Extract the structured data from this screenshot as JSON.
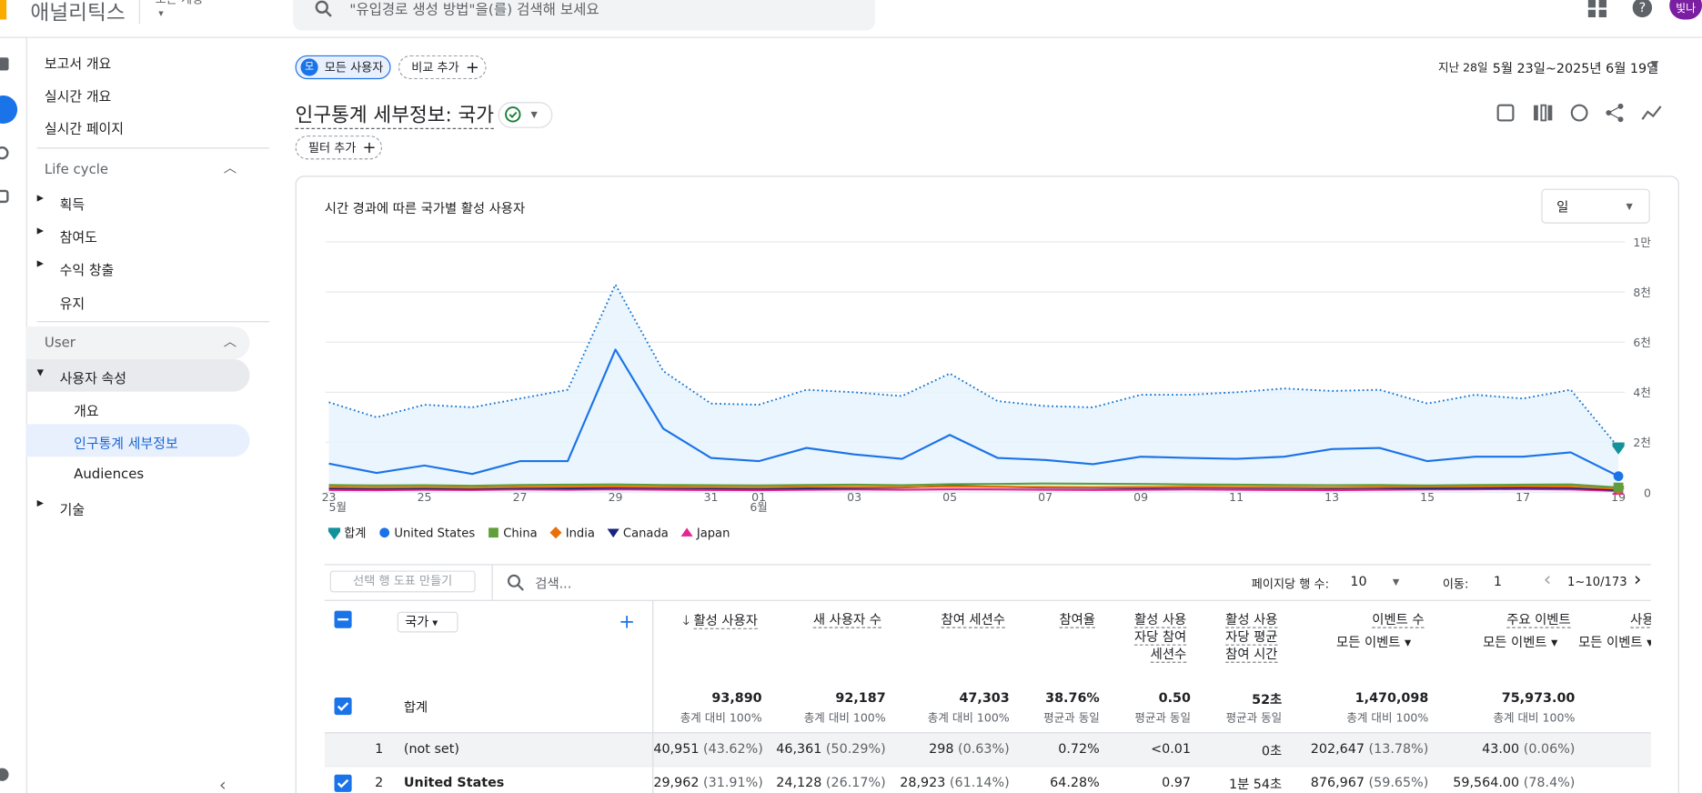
{
  "header": {
    "product": "애널리틱스",
    "account": "모든 계정",
    "search": "\"유입경로 생성 방법\"을(를) 검색해 보세요",
    "avatar": "빛나"
  },
  "sidebar": {
    "top": [
      "보고서 개요",
      "실시간 개요",
      "실시간 페이지"
    ],
    "lifecycle": {
      "title": "Life cycle",
      "items": [
        "획득",
        "참여도",
        "수익 창출",
        "유지"
      ]
    },
    "user": {
      "title": "User",
      "group": "사용자 속성",
      "children": [
        "개요",
        "인구통계 세부정보",
        "Audiences"
      ],
      "after": "기술"
    }
  },
  "toolbar": {
    "segment_badge": "모",
    "segment": "모든 사용자",
    "compare": "비교 추가",
    "date_label": "지난 28일",
    "date_range": "5월 23일~2025년 6월 19일"
  },
  "report": {
    "title": "인구통계 세부정보: 국가",
    "filter": "필터 추가"
  },
  "chart": {
    "type": "line",
    "title": "시간 경과에 따른 국가별 활성 사용자",
    "interval": "일",
    "categories": [
      "23",
      null,
      "25",
      null,
      "27",
      null,
      "29",
      null,
      "31",
      "01",
      null,
      "03",
      null,
      "05",
      null,
      "07",
      null,
      "09",
      null,
      "11",
      null,
      "13",
      null,
      "15",
      null,
      "17",
      null,
      "19"
    ],
    "month_labels": [
      "5월",
      null,
      null,
      null,
      null,
      null,
      null,
      null,
      null,
      "6월",
      null,
      null,
      null,
      null,
      null,
      null,
      null,
      null,
      null,
      null,
      null,
      null,
      null,
      null,
      null,
      null,
      null,
      null
    ],
    "ylim": [
      0,
      10000
    ],
    "yticks": [
      0,
      {
        "value": 2000,
        "label": "2천"
      },
      {
        "value": 4000,
        "label": "4천"
      },
      {
        "value": 6000,
        "label": "6천"
      },
      {
        "value": 8000,
        "label": "8천"
      },
      {
        "value": 10000,
        "label": "1만"
      }
    ],
    "grid": true,
    "series": [
      {
        "name": "합계",
        "color": "#1976d2",
        "marker": "pin",
        "marker_color": "#12939a",
        "dotted": true,
        "area": true,
        "values": [
          3600,
          3000,
          3500,
          3400,
          3750,
          4100,
          8300,
          4850,
          3550,
          3500,
          4100,
          4000,
          3850,
          4750,
          3650,
          3450,
          3400,
          3900,
          3900,
          4000,
          4150,
          4050,
          4100,
          3550,
          3900,
          3750,
          4100,
          1800
        ]
      },
      {
        "name": "United States",
        "color": "#1a73e8",
        "marker": "circle",
        "values": [
          1150,
          780,
          1080,
          740,
          1250,
          1250,
          5700,
          2550,
          1380,
          1250,
          1780,
          1520,
          1340,
          2300,
          1380,
          1300,
          1130,
          1430,
          1380,
          1340,
          1430,
          1730,
          1780,
          1250,
          1430,
          1430,
          1600,
          650
        ]
      },
      {
        "name": "China",
        "color": "#5f9e3b",
        "marker": "square",
        "values": [
          300,
          280,
          290,
          270,
          300,
          310,
          320,
          300,
          290,
          280,
          300,
          310,
          290,
          330,
          340,
          360,
          350,
          340,
          320,
          310,
          300,
          290,
          300,
          280,
          300,
          310,
          320,
          200
        ]
      },
      {
        "name": "India",
        "color": "#e8710a",
        "marker": "diamond",
        "values": [
          220,
          200,
          210,
          190,
          220,
          230,
          240,
          220,
          210,
          200,
          230,
          220,
          210,
          240,
          230,
          220,
          210,
          220,
          230,
          220,
          210,
          200,
          220,
          230,
          240,
          250,
          240,
          150
        ]
      },
      {
        "name": "Canada",
        "color": "#1a237e",
        "marker": "triangle-down",
        "values": [
          170,
          160,
          170,
          150,
          180,
          170,
          190,
          180,
          170,
          160,
          170,
          180,
          200,
          260,
          230,
          200,
          190,
          180,
          200,
          190,
          180,
          170,
          180,
          170,
          180,
          190,
          180,
          100
        ]
      },
      {
        "name": "Japan",
        "color": "#e52592",
        "marker": "triangle-up",
        "values": [
          100,
          90,
          110,
          100,
          120,
          110,
          130,
          110,
          100,
          90,
          110,
          120,
          110,
          130,
          120,
          110,
          100,
          110,
          120,
          110,
          100,
          90,
          110,
          120,
          130,
          140,
          120,
          60
        ]
      }
    ]
  },
  "table": {
    "chart_button": "선택 행 도표 만들기",
    "search": "검색...",
    "rows_per_page_label": "페이지당 행 수:",
    "rows_per_page": "10",
    "goto_label": "이동:",
    "goto": "1",
    "range": "1~10/173",
    "dimension": "국가",
    "columns": [
      {
        "name": "활성 사용자",
        "sorted": true
      },
      {
        "name": "새 사용자 수"
      },
      {
        "name": "참여 세션수"
      },
      {
        "name": "참여율"
      },
      {
        "name": "활성 사용자당 참여 세션수"
      },
      {
        "name": "활성 사용자당 평균 참여 시간"
      },
      {
        "name": "이벤트 수",
        "sub": "모든 이벤트"
      },
      {
        "name": "주요 이벤트",
        "sub": "모든 이벤트"
      },
      {
        "name": "사용자",
        "sub": "모든 이벤트"
      }
    ],
    "totals": {
      "label": "합계",
      "selected": true,
      "values": [
        "93,890",
        "92,187",
        "47,303",
        "38.76%",
        "0.50",
        "52초",
        "1,470,098",
        "75,973.00"
      ],
      "notes": [
        "총계 대비 100%",
        "총계 대비 100%",
        "총계 대비 100%",
        "평균과 동일",
        "평균과 동일",
        "평균과 동일",
        "총계 대비 100%",
        "총계 대비 100%"
      ]
    },
    "rows": [
      {
        "rank": "1",
        "name": "(not set)",
        "selected": false,
        "cells": [
          [
            "40,951",
            "(43.62%)"
          ],
          [
            "46,361",
            "(50.29%)"
          ],
          [
            "298",
            "(0.63%)"
          ],
          [
            "0.72%"
          ],
          [
            "<0.01"
          ],
          [
            "0초"
          ],
          [
            "202,647",
            "(13.78%)"
          ],
          [
            "43.00",
            "(0.06%)"
          ]
        ]
      },
      {
        "rank": "2",
        "name": "United States",
        "selected": true,
        "cells": [
          [
            "29,962",
            "(31.91%)"
          ],
          [
            "24,128",
            "(26.17%)"
          ],
          [
            "28,923",
            "(61.14%)"
          ],
          [
            "64.28%"
          ],
          [
            "0.97"
          ],
          [
            "1분 54초"
          ],
          [
            "876,967",
            "(59.65%)"
          ],
          [
            "59,564.00",
            "(78.4%)"
          ]
        ]
      }
    ]
  }
}
